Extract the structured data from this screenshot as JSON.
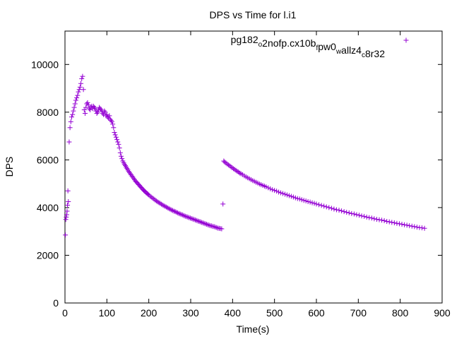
{
  "chart_data": {
    "type": "scatter",
    "title": "DPS vs Time for l.i1",
    "xlabel": "Time(s)",
    "ylabel": "DPS",
    "xlim": [
      0,
      900
    ],
    "ylim": [
      0,
      11400
    ],
    "xticks": [
      0,
      100,
      200,
      300,
      400,
      500,
      600,
      700,
      800,
      900
    ],
    "yticks": [
      0,
      2000,
      4000,
      6000,
      8000,
      10000
    ],
    "grid": false,
    "legend_position": "top-right",
    "series": [
      {
        "name": "pg182_o2nofp.cx10b_fpw0_wallz4_c8r32",
        "legend_segments": [
          {
            "text": "pg182",
            "sub": false
          },
          {
            "text": "o",
            "sub": true
          },
          {
            "text": "2nofp.cx10b",
            "sub": false
          },
          {
            "text": "f",
            "sub": true
          },
          {
            "text": "pw0",
            "sub": false
          },
          {
            "text": "w",
            "sub": true
          },
          {
            "text": "allz4",
            "sub": false
          },
          {
            "text": "c",
            "sub": true
          },
          {
            "text": "8r32",
            "sub": false
          }
        ],
        "color": "#9400d3",
        "marker": "plus",
        "points": [
          [
            1,
            2850
          ],
          [
            2,
            3500
          ],
          [
            3,
            3600
          ],
          [
            4,
            3700
          ],
          [
            5,
            3850
          ],
          [
            6,
            4100
          ],
          [
            7,
            4700
          ],
          [
            8,
            4250
          ],
          [
            10,
            6750
          ],
          [
            12,
            7350
          ],
          [
            14,
            7600
          ],
          [
            16,
            7800
          ],
          [
            18,
            7900
          ],
          [
            20,
            8050
          ],
          [
            22,
            8200
          ],
          [
            24,
            8350
          ],
          [
            26,
            8500
          ],
          [
            28,
            8600
          ],
          [
            30,
            8700
          ],
          [
            32,
            8850
          ],
          [
            34,
            8950
          ],
          [
            36,
            9050
          ],
          [
            38,
            9200
          ],
          [
            40,
            9400
          ],
          [
            42,
            9500
          ],
          [
            44,
            8950
          ],
          [
            46,
            8100
          ],
          [
            48,
            7950
          ],
          [
            50,
            8200
          ],
          [
            52,
            8350
          ],
          [
            54,
            8400
          ],
          [
            56,
            8300
          ],
          [
            58,
            8150
          ],
          [
            60,
            8100
          ],
          [
            62,
            8200
          ],
          [
            64,
            8250
          ],
          [
            66,
            8150
          ],
          [
            68,
            8250
          ],
          [
            70,
            8200
          ],
          [
            72,
            8150
          ],
          [
            74,
            8050
          ],
          [
            76,
            7950
          ],
          [
            78,
            8000
          ],
          [
            80,
            8100
          ],
          [
            82,
            8200
          ],
          [
            84,
            8150
          ],
          [
            86,
            8100
          ],
          [
            88,
            8050
          ],
          [
            90,
            7950
          ],
          [
            92,
            7900
          ],
          [
            94,
            8050
          ],
          [
            96,
            8000
          ],
          [
            98,
            7850
          ],
          [
            100,
            7900
          ],
          [
            102,
            7800
          ],
          [
            104,
            7750
          ],
          [
            106,
            7850
          ],
          [
            108,
            7700
          ],
          [
            110,
            7650
          ],
          [
            112,
            7600
          ],
          [
            114,
            7500
          ],
          [
            116,
            7350
          ],
          [
            118,
            7150
          ],
          [
            120,
            7050
          ],
          [
            122,
            6950
          ],
          [
            124,
            6850
          ],
          [
            126,
            6750
          ],
          [
            128,
            6650
          ],
          [
            130,
            6500
          ],
          [
            132,
            6300
          ],
          [
            134,
            6150
          ],
          [
            136,
            6050
          ],
          [
            138,
            5950
          ],
          [
            140,
            5880
          ],
          [
            142,
            5820
          ],
          [
            144,
            5760
          ],
          [
            146,
            5700
          ],
          [
            148,
            5640
          ],
          [
            150,
            5580
          ],
          [
            152,
            5520
          ],
          [
            154,
            5470
          ],
          [
            156,
            5420
          ],
          [
            158,
            5370
          ],
          [
            160,
            5320
          ],
          [
            162,
            5270
          ],
          [
            164,
            5220
          ],
          [
            166,
            5170
          ],
          [
            168,
            5120
          ],
          [
            170,
            5080
          ],
          [
            172,
            5040
          ],
          [
            174,
            5000
          ],
          [
            176,
            4960
          ],
          [
            178,
            4920
          ],
          [
            180,
            4880
          ],
          [
            182,
            4840
          ],
          [
            184,
            4800
          ],
          [
            186,
            4760
          ],
          [
            188,
            4720
          ],
          [
            190,
            4690
          ],
          [
            192,
            4660
          ],
          [
            194,
            4620
          ],
          [
            196,
            4590
          ],
          [
            198,
            4560
          ],
          [
            200,
            4530
          ],
          [
            203,
            4480
          ],
          [
            206,
            4440
          ],
          [
            209,
            4400
          ],
          [
            212,
            4360
          ],
          [
            215,
            4320
          ],
          [
            218,
            4280
          ],
          [
            221,
            4240
          ],
          [
            224,
            4210
          ],
          [
            227,
            4180
          ],
          [
            230,
            4140
          ],
          [
            233,
            4110
          ],
          [
            236,
            4080
          ],
          [
            239,
            4050
          ],
          [
            242,
            4020
          ],
          [
            245,
            3990
          ],
          [
            248,
            3960
          ],
          [
            251,
            3930
          ],
          [
            254,
            3900
          ],
          [
            257,
            3880
          ],
          [
            260,
            3850
          ],
          [
            263,
            3830
          ],
          [
            266,
            3800
          ],
          [
            269,
            3780
          ],
          [
            272,
            3750
          ],
          [
            275,
            3730
          ],
          [
            278,
            3710
          ],
          [
            281,
            3690
          ],
          [
            284,
            3660
          ],
          [
            287,
            3640
          ],
          [
            290,
            3620
          ],
          [
            293,
            3600
          ],
          [
            296,
            3580
          ],
          [
            299,
            3560
          ],
          [
            302,
            3540
          ],
          [
            305,
            3520
          ],
          [
            308,
            3500
          ],
          [
            311,
            3480
          ],
          [
            314,
            3460
          ],
          [
            317,
            3440
          ],
          [
            320,
            3420
          ],
          [
            323,
            3400
          ],
          [
            326,
            3380
          ],
          [
            329,
            3360
          ],
          [
            332,
            3340
          ],
          [
            335,
            3320
          ],
          [
            338,
            3300
          ],
          [
            341,
            3280
          ],
          [
            344,
            3260
          ],
          [
            347,
            3240
          ],
          [
            350,
            3230
          ],
          [
            353,
            3210
          ],
          [
            356,
            3200
          ],
          [
            359,
            3180
          ],
          [
            362,
            3160
          ],
          [
            365,
            3140
          ],
          [
            368,
            3130
          ],
          [
            371,
            3120
          ],
          [
            374,
            3110
          ],
          [
            377,
            4150
          ],
          [
            379,
            5950
          ],
          [
            381,
            5910
          ],
          [
            384,
            5870
          ],
          [
            387,
            5830
          ],
          [
            390,
            5790
          ],
          [
            393,
            5750
          ],
          [
            396,
            5710
          ],
          [
            399,
            5670
          ],
          [
            402,
            5630
          ],
          [
            405,
            5600
          ],
          [
            408,
            5560
          ],
          [
            411,
            5520
          ],
          [
            414,
            5490
          ],
          [
            417,
            5450
          ],
          [
            420,
            5420
          ],
          [
            424,
            5380
          ],
          [
            428,
            5330
          ],
          [
            432,
            5290
          ],
          [
            436,
            5250
          ],
          [
            440,
            5210
          ],
          [
            444,
            5170
          ],
          [
            448,
            5130
          ],
          [
            452,
            5100
          ],
          [
            456,
            5060
          ],
          [
            460,
            5030
          ],
          [
            464,
            4990
          ],
          [
            468,
            4960
          ],
          [
            472,
            4930
          ],
          [
            476,
            4900
          ],
          [
            480,
            4870
          ],
          [
            485,
            4830
          ],
          [
            490,
            4790
          ],
          [
            495,
            4750
          ],
          [
            500,
            4720
          ],
          [
            505,
            4690
          ],
          [
            510,
            4650
          ],
          [
            515,
            4620
          ],
          [
            520,
            4590
          ],
          [
            525,
            4560
          ],
          [
            530,
            4530
          ],
          [
            535,
            4500
          ],
          [
            540,
            4470
          ],
          [
            545,
            4440
          ],
          [
            550,
            4410
          ],
          [
            555,
            4380
          ],
          [
            560,
            4360
          ],
          [
            565,
            4330
          ],
          [
            570,
            4300
          ],
          [
            575,
            4280
          ],
          [
            580,
            4250
          ],
          [
            585,
            4230
          ],
          [
            590,
            4200
          ],
          [
            595,
            4180
          ],
          [
            600,
            4150
          ],
          [
            606,
            4120
          ],
          [
            612,
            4090
          ],
          [
            618,
            4060
          ],
          [
            624,
            4030
          ],
          [
            630,
            4000
          ],
          [
            636,
            3970
          ],
          [
            642,
            3940
          ],
          [
            648,
            3910
          ],
          [
            654,
            3890
          ],
          [
            660,
            3860
          ],
          [
            666,
            3830
          ],
          [
            672,
            3800
          ],
          [
            678,
            3780
          ],
          [
            684,
            3750
          ],
          [
            690,
            3730
          ],
          [
            696,
            3700
          ],
          [
            702,
            3680
          ],
          [
            708,
            3650
          ],
          [
            714,
            3630
          ],
          [
            720,
            3600
          ],
          [
            726,
            3580
          ],
          [
            732,
            3560
          ],
          [
            738,
            3530
          ],
          [
            744,
            3510
          ],
          [
            750,
            3490
          ],
          [
            756,
            3470
          ],
          [
            762,
            3450
          ],
          [
            768,
            3420
          ],
          [
            774,
            3400
          ],
          [
            780,
            3380
          ],
          [
            786,
            3360
          ],
          [
            792,
            3340
          ],
          [
            798,
            3320
          ],
          [
            804,
            3300
          ],
          [
            810,
            3280
          ],
          [
            816,
            3260
          ],
          [
            822,
            3240
          ],
          [
            828,
            3220
          ],
          [
            834,
            3200
          ],
          [
            840,
            3180
          ],
          [
            846,
            3160
          ],
          [
            852,
            3150
          ],
          [
            858,
            3130
          ]
        ]
      }
    ]
  }
}
